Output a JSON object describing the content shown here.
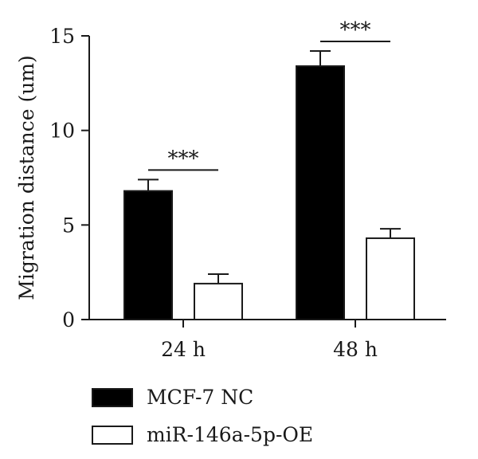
{
  "chart_data": {
    "type": "bar",
    "title": "",
    "xlabel": "",
    "ylabel": "Migration distance (um)",
    "ylim": [
      0,
      15
    ],
    "yticks": [
      0,
      5,
      10,
      15
    ],
    "categories": [
      "24 h",
      "48 h"
    ],
    "series": [
      {
        "name": "MCF-7 NC",
        "values": [
          6.8,
          13.4
        ],
        "errors": [
          0.6,
          0.8
        ],
        "fill": "#000000"
      },
      {
        "name": "miR-146a-5p-OE",
        "values": [
          1.9,
          4.3
        ],
        "errors": [
          0.5,
          0.5
        ],
        "fill": "#ffffff"
      }
    ],
    "significance": [
      {
        "category": "24 h",
        "label": "***"
      },
      {
        "category": "48 h",
        "label": "***"
      }
    ],
    "legend_position": "bottom-left",
    "grid": false
  }
}
